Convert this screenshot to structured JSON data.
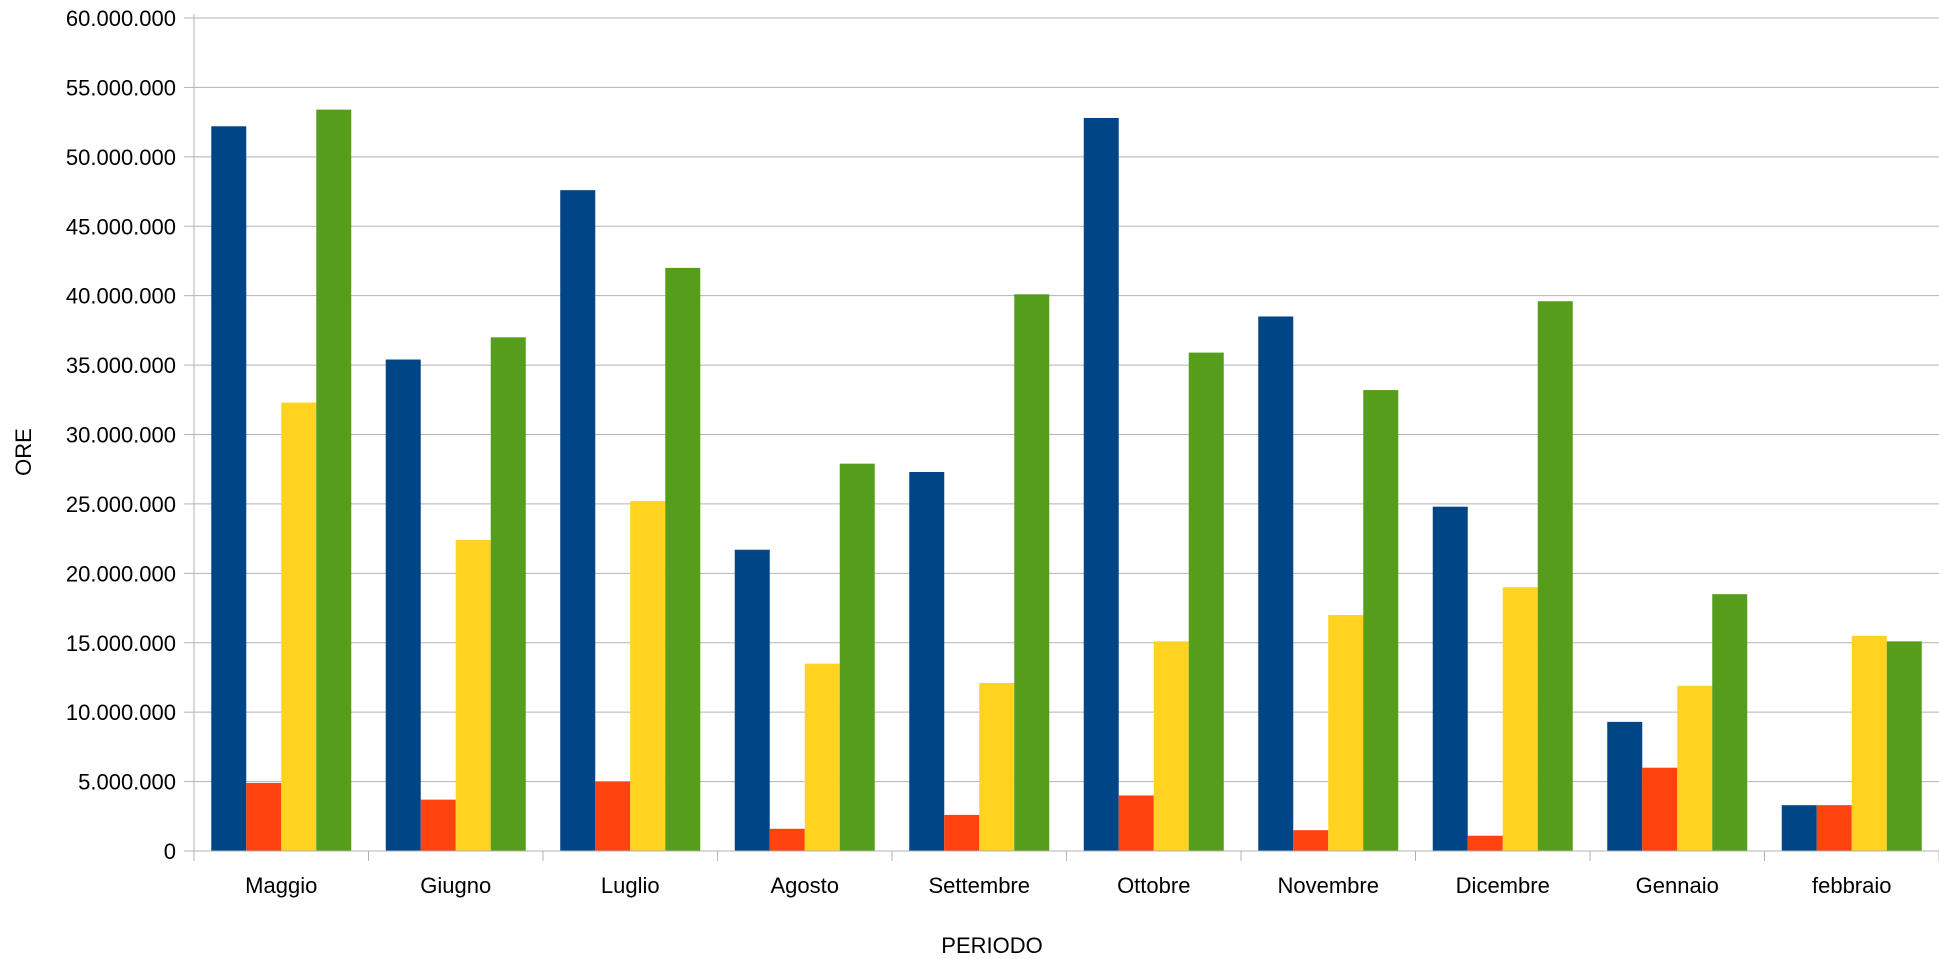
{
  "chart_data": {
    "type": "bar",
    "title": "",
    "xlabel": "PERIODO",
    "ylabel": "ORE",
    "ylim": [
      0,
      60000000
    ],
    "ytick_step": 5000000,
    "yticks": [
      "0",
      "5.000.000",
      "10.000.000",
      "15.000.000",
      "20.000.000",
      "25.000.000",
      "30.000.000",
      "35.000.000",
      "40.000.000",
      "45.000.000",
      "50.000.000",
      "55.000.000",
      "60.000.000"
    ],
    "grid": true,
    "legend": "none",
    "categories": [
      "Maggio",
      "Giugno",
      "Luglio",
      "Agosto",
      "Settembre",
      "Ottobre",
      "Novembre",
      "Dicembre",
      "Gennaio",
      "febbraio"
    ],
    "series": [
      {
        "color": "#004586",
        "values": [
          52200000,
          35400000,
          47600000,
          21700000,
          27300000,
          52800000,
          38500000,
          24800000,
          9300000,
          3300000
        ]
      },
      {
        "color": "#ff420e",
        "values": [
          4900000,
          3700000,
          5000000,
          1600000,
          2600000,
          4000000,
          1500000,
          1100000,
          6000000,
          3300000
        ]
      },
      {
        "color": "#ffd320",
        "values": [
          32300000,
          22400000,
          25200000,
          13500000,
          12100000,
          15100000,
          17000000,
          19000000,
          11900000,
          15500000
        ]
      },
      {
        "color": "#579d1c",
        "values": [
          53400000,
          37000000,
          42000000,
          27900000,
          40100000,
          35900000,
          33200000,
          39600000,
          18500000,
          15100000
        ]
      }
    ]
  }
}
